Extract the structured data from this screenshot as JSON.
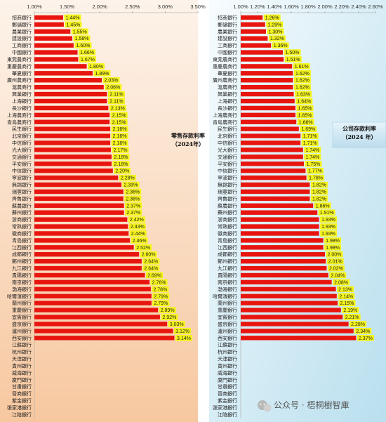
{
  "chart_data": [
    {
      "type": "bar",
      "orientation": "horizontal",
      "title": "零售存款利率",
      "subtitle": "（2024年）",
      "xlim": [
        1.0,
        3.5
      ],
      "x_ticks": [
        "1.00%",
        "1.50%",
        "2.00%",
        "2.50%",
        "3.00%",
        "3.50%"
      ],
      "tick_values": [
        1.0,
        1.5,
        2.0,
        2.5,
        3.0,
        3.5
      ],
      "bar_color": "#e8150f",
      "label_bg_color": "#f5f51a",
      "background_gradient": [
        "#fdf2e8",
        "#f6c9a3"
      ],
      "categories": [
        "招商銀行",
        "郵儲銀行",
        "農業銀行",
        "建設銀行",
        "工商銀行",
        "中國銀行",
        "東莞農商行",
        "重慶農商行",
        "華夏銀行",
        "廣州農商行",
        "滬農商行",
        "興業銀行",
        "上海銀行",
        "長沙銀行",
        "上海農商行",
        "青島農商行",
        "民生銀行",
        "北京銀行",
        "中信銀行",
        "光大銀行",
        "交通銀行",
        "平安銀行",
        "中信銀行",
        "寧波銀行",
        "無錫銀行",
        "瑞豐銀行",
        "齊魯銀行",
        "蘇農銀行",
        "蘇州銀行",
        "浙商銀行",
        "常熟銀行",
        "徽商銀行",
        "青島銀行",
        "江西銀行",
        "成都銀行",
        "鄭州銀行",
        "九江銀行",
        "貴陽銀行",
        "南京銀行",
        "渤海銀行",
        "哈爾濱銀行",
        "蘭州銀行",
        "重慶銀行",
        "宜賓銀行",
        "盛京銀行",
        "瀘州銀行",
        "西安銀行",
        "江蘇銀行",
        "杭州銀行",
        "天津銀行",
        "貴州銀行",
        "威海銀行",
        "廈門銀行",
        "甘肅銀行",
        "晉商銀行",
        "紫金銀行",
        "張家港銀行",
        "江陰銀行"
      ],
      "values": [
        1.44,
        1.45,
        1.55,
        1.58,
        1.6,
        1.66,
        1.67,
        1.8,
        1.89,
        2.03,
        2.06,
        2.11,
        2.11,
        2.13,
        2.15,
        2.15,
        2.16,
        2.16,
        2.16,
        2.17,
        2.18,
        2.18,
        2.2,
        2.28,
        2.33,
        2.36,
        2.36,
        2.37,
        2.37,
        2.42,
        2.43,
        2.44,
        2.46,
        2.52,
        2.6,
        2.64,
        2.64,
        2.69,
        2.76,
        2.78,
        2.79,
        2.79,
        2.89,
        2.92,
        3.03,
        3.12,
        3.14,
        null,
        null,
        null,
        null,
        null,
        null,
        null,
        null,
        null,
        null,
        null
      ],
      "data_labels": [
        "1.44%",
        "1.45%",
        "1.55%",
        "1.58%",
        "1.60%",
        "1.66%",
        "1.67%",
        "1.80%",
        "1.89%",
        "2.03%",
        "2.06%",
        "2.11%",
        "2.11%",
        "2.13%",
        "2.15%",
        "2.15%",
        "2.16%",
        "2.16%",
        "2.16%",
        "2.17%",
        "2.18%",
        "2.18%",
        "2.20%",
        "2.28%",
        "2.33%",
        "2.36%",
        "2.36%",
        "2.37%",
        "2.37%",
        "2.42%",
        "2.43%",
        "2.44%",
        "2.46%",
        "2.52%",
        "2.60%",
        "2.64%",
        "2.64%",
        "2.69%",
        "2.76%",
        "2.78%",
        "2.79%",
        "2.79%",
        "2.89%",
        "2.92%",
        "3.03%",
        "3.12%",
        "3.14%",
        "",
        "",
        "",
        "",
        "",
        "",
        "",
        "",
        "",
        "",
        ""
      ]
    },
    {
      "type": "bar",
      "orientation": "horizontal",
      "title": "公司存款利率",
      "subtitle": "（2024 年）",
      "xlim": [
        1.0,
        2.6
      ],
      "x_ticks": [
        "1.00%",
        "1.20%",
        "1.40%",
        "1.60%",
        "1.80%",
        "2.00%",
        "2.20%",
        "2.40%",
        "2.60%"
      ],
      "tick_values": [
        1.0,
        1.2,
        1.4,
        1.6,
        1.8,
        2.0,
        2.2,
        2.4,
        2.6
      ],
      "bar_color": "#e8150f",
      "label_bg_color": "#f5f51a",
      "background_gradient": [
        "#f4fafd",
        "#bfe0ef"
      ],
      "categories": [
        "招商銀行",
        "郵儲銀行",
        "農業銀行",
        "建設銀行",
        "工商銀行",
        "中國銀行",
        "東莞農商行",
        "重慶農商行",
        "華夏銀行",
        "廣州農商行",
        "滬農商行",
        "興業銀行",
        "上海銀行",
        "長沙銀行",
        "上海農商行",
        "青島農商行",
        "民生銀行",
        "北京銀行",
        "中信銀行",
        "光大銀行",
        "交通銀行",
        "平安銀行",
        "中信銀行",
        "寧波銀行",
        "無錫銀行",
        "瑞豐銀行",
        "齊魯銀行",
        "蘇農銀行",
        "蘇州銀行",
        "浙商銀行",
        "常熟銀行",
        "徽商銀行",
        "青島銀行",
        "江西銀行",
        "成都銀行",
        "鄭州銀行",
        "九江銀行",
        "貴陽銀行",
        "南京銀行",
        "渤海銀行",
        "哈爾濱銀行",
        "蘭州銀行",
        "重慶銀行",
        "宜賓銀行",
        "盛京銀行",
        "瀘州銀行",
        "西安銀行",
        "江蘇銀行",
        "杭州銀行",
        "天津銀行",
        "貴州銀行",
        "威海銀行",
        "廈門銀行",
        "甘肅銀行",
        "晉商銀行",
        "紫金銀行",
        "張家港銀行",
        "江陰銀行"
      ],
      "values": [
        1.26,
        1.29,
        1.3,
        1.32,
        1.36,
        1.5,
        1.51,
        1.61,
        1.62,
        1.62,
        1.62,
        1.63,
        1.64,
        1.65,
        1.65,
        1.66,
        1.69,
        1.71,
        1.71,
        1.74,
        1.74,
        1.75,
        1.77,
        1.78,
        1.82,
        1.82,
        1.82,
        1.86,
        1.91,
        1.93,
        1.93,
        1.93,
        1.98,
        1.98,
        2.0,
        2.01,
        2.02,
        2.04,
        2.08,
        2.13,
        2.14,
        2.15,
        2.19,
        2.21,
        2.28,
        2.34,
        2.37,
        null,
        null,
        null,
        null,
        null,
        null,
        null,
        null,
        null,
        null,
        null
      ],
      "data_labels": [
        "1.26%",
        "1.29%",
        "1.30%",
        "1.32%",
        "1.36%",
        "1.50%",
        "1.51%",
        "1.61%",
        "1.62%",
        "1.62%",
        "1.62%",
        "1.63%",
        "1.64%",
        "1.65%",
        "1.65%",
        "1.66%",
        "1.69%",
        "1.71%",
        "1.71%",
        "1.74%",
        "1.74%",
        "1.75%",
        "1.77%",
        "1.78%",
        "1.82%",
        "1.82%",
        "1.82%",
        "1.86%",
        "1.91%",
        "1.93%",
        "1.93%",
        "1.93%",
        "1.98%",
        "1.98%",
        "2.00%",
        "2.01%",
        "2.02%",
        "2.04%",
        "2.08%",
        "2.13%",
        "2.14%",
        "2.15%",
        "2.19%",
        "2.21%",
        "2.28%",
        "2.34%",
        "2.37%",
        "",
        "",
        "",
        "",
        "",
        "",
        "",
        "",
        "",
        "",
        ""
      ]
    }
  ],
  "watermark": {
    "icon": "wechat-icon",
    "text": "公众号 · 梧桐樹智庫"
  }
}
